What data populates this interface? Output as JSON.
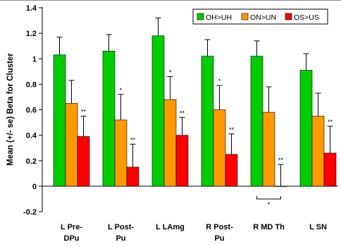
{
  "chart_data": {
    "type": "bar",
    "title": "",
    "xlabel": "",
    "ylabel": "Mean (+/- se) Beta for Cluster",
    "ylim": [
      -0.2,
      1.4
    ],
    "yticks": [
      "-0.2",
      "0",
      "0.2",
      "0.4",
      "0.6",
      "0.8",
      "1",
      "1.2",
      "1.4"
    ],
    "grid": false,
    "legend_position": "top-right",
    "categories": [
      [
        "L Pre-",
        "DPu"
      ],
      [
        "L Post-",
        "Pu"
      ],
      [
        "L LAmg"
      ],
      [
        "R Post-",
        "Pu"
      ],
      [
        "R MD Th"
      ],
      [
        "L SN"
      ]
    ],
    "series": [
      {
        "name": "OH>UH",
        "color": "#00cc00",
        "values": [
          1.03,
          1.06,
          1.18,
          1.02,
          1.02,
          0.91
        ],
        "errors": [
          0.14,
          0.13,
          0.14,
          0.13,
          0.12,
          0.13
        ],
        "marks": [
          "",
          "",
          "",
          "",
          "",
          ""
        ]
      },
      {
        "name": "ON>UN",
        "color": "#ff9900",
        "values": [
          0.65,
          0.52,
          0.68,
          0.6,
          0.58,
          0.55
        ],
        "errors": [
          0.18,
          0.2,
          0.18,
          0.19,
          0.2,
          0.18
        ],
        "marks": [
          "",
          "*",
          "*",
          "*",
          "",
          ""
        ]
      },
      {
        "name": "OS>US",
        "color": "#ff0000",
        "values": [
          0.39,
          0.15,
          0.4,
          0.25,
          0.0,
          0.26
        ],
        "errors": [
          0.16,
          0.18,
          0.14,
          0.16,
          0.17,
          0.21
        ],
        "marks": [
          "**",
          "**",
          "**",
          "**",
          "**",
          "**"
        ]
      }
    ],
    "bracket_annotation": {
      "category_index": 4,
      "text": "*"
    }
  }
}
